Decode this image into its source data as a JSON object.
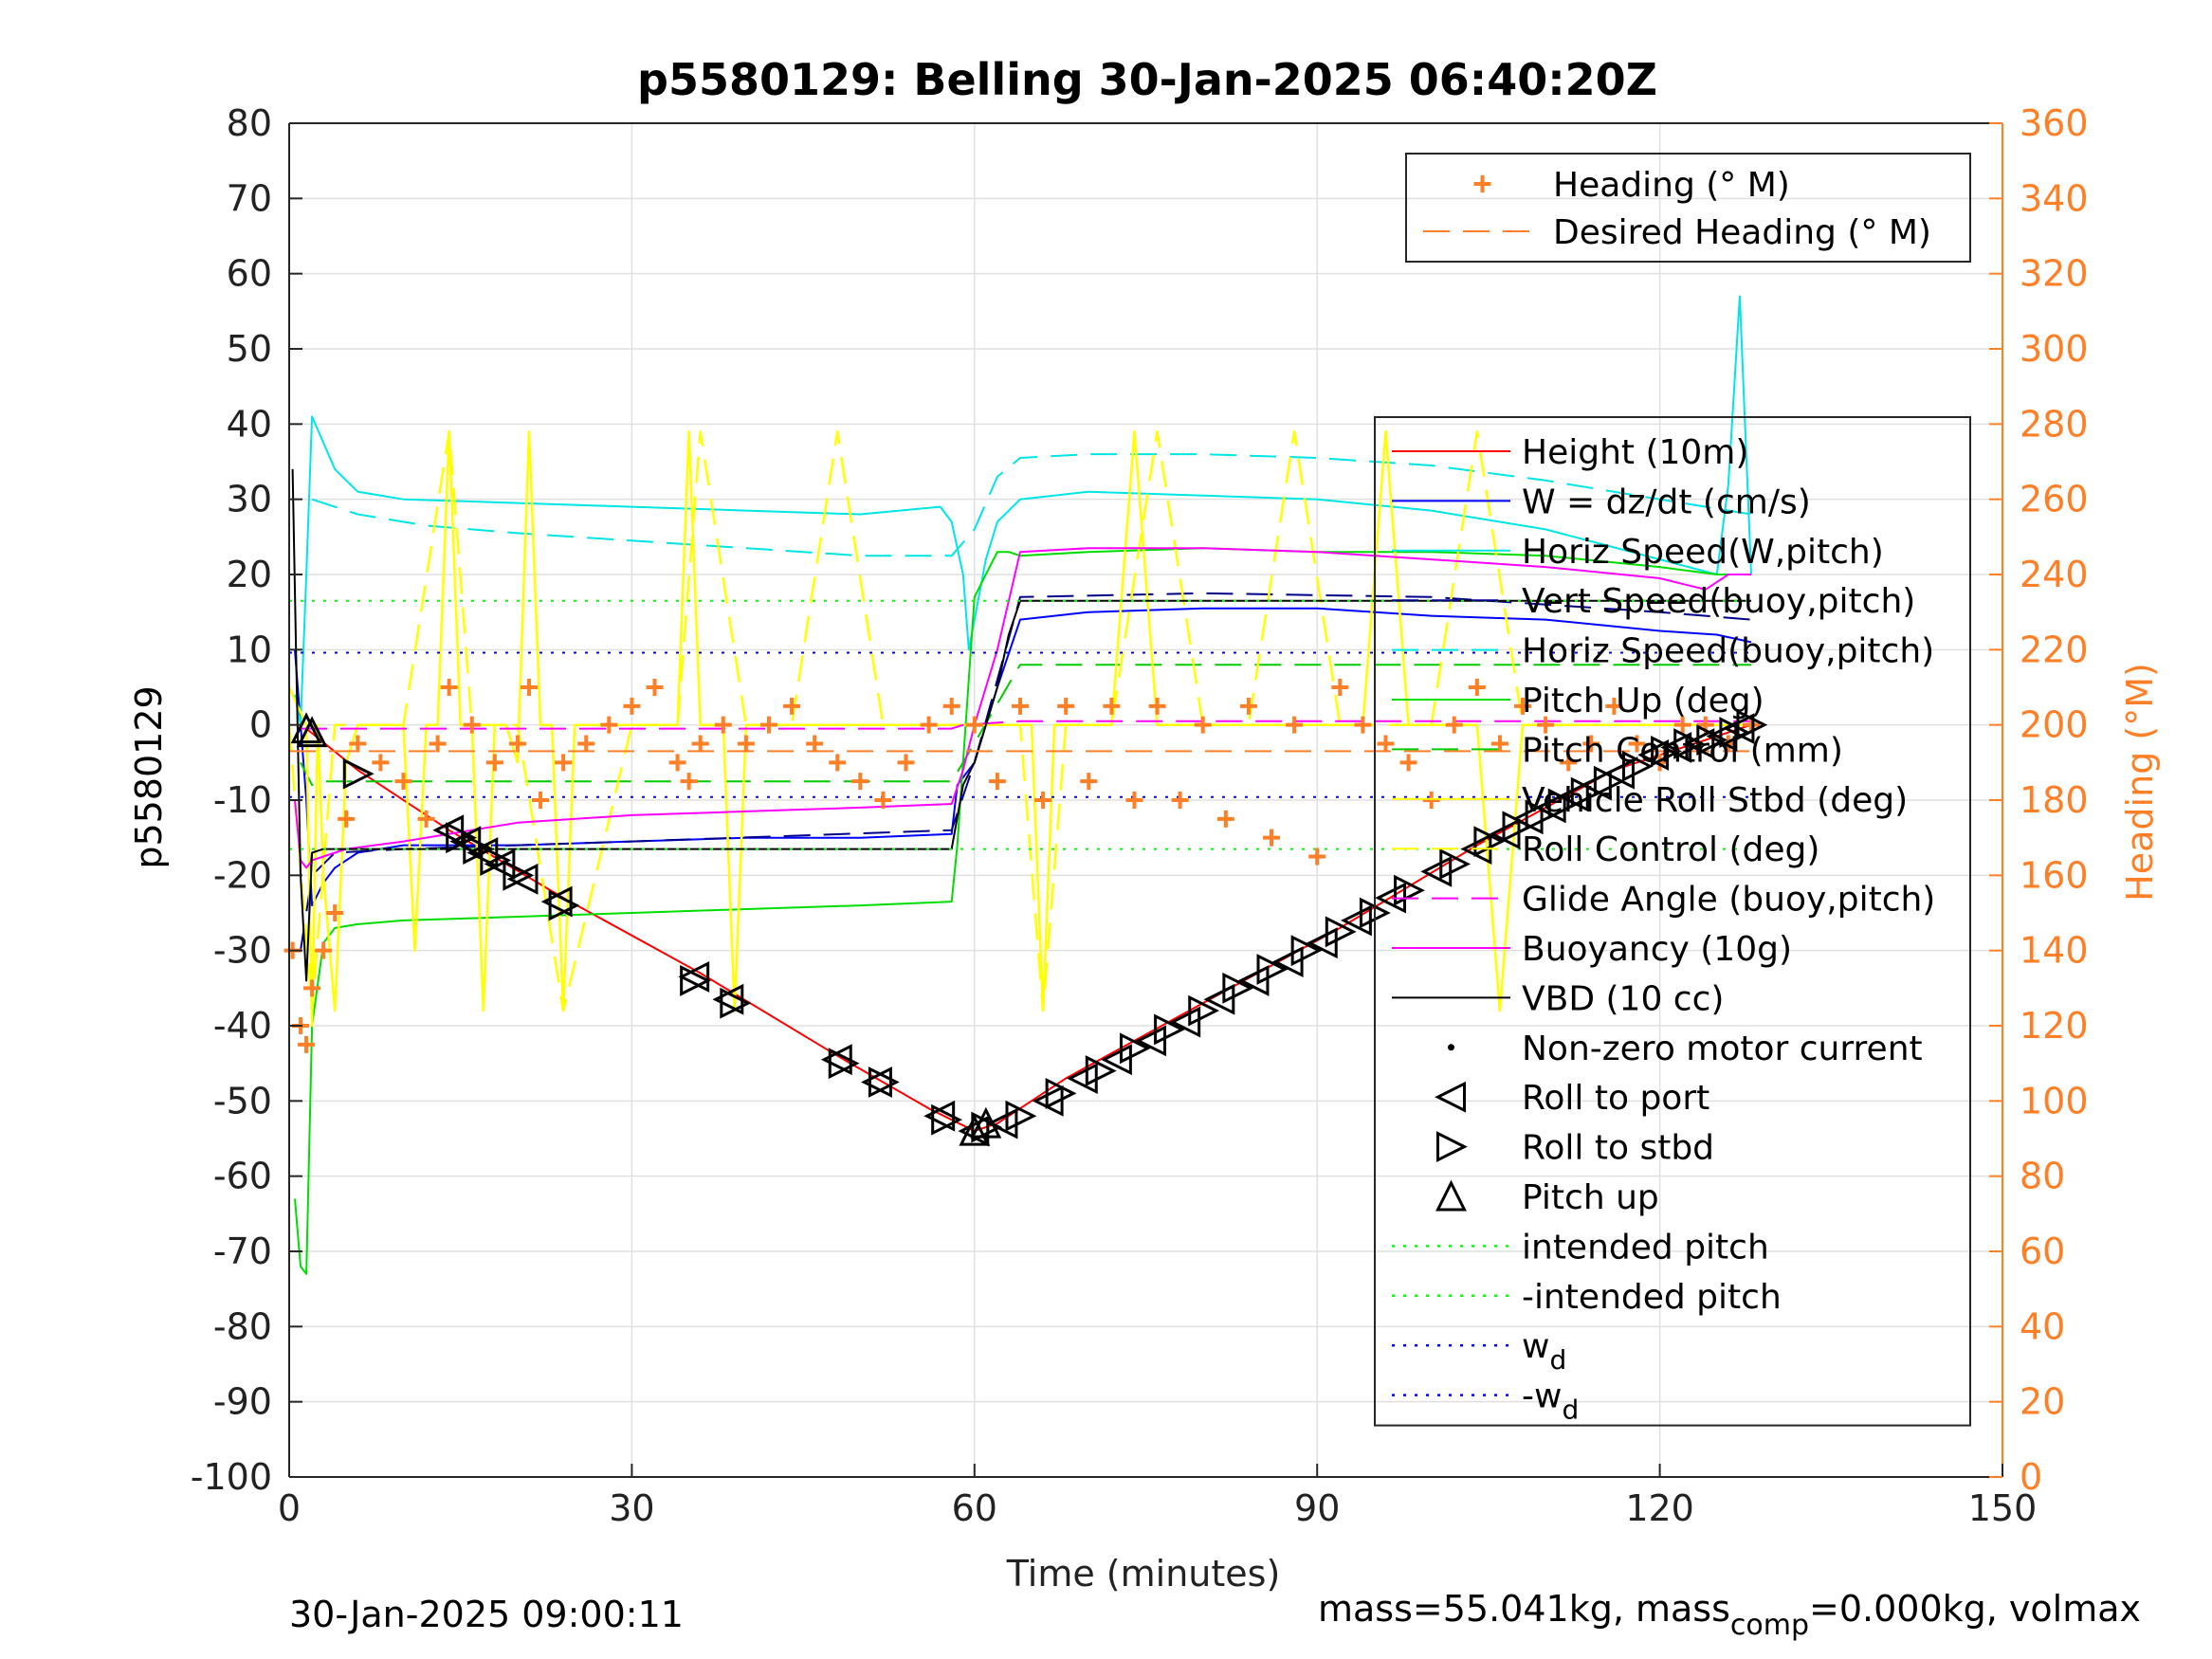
{
  "chart_data": {
    "type": "line",
    "title": "p5580129: Belling 30-Jan-2025 06:40:20Z",
    "xlabel": "Time (minutes)",
    "ylabel": "p5580129",
    "y2label": "Heading (°M)",
    "xlim": [
      0,
      150
    ],
    "ylim": [
      -100,
      80
    ],
    "y2lim": [
      0,
      360
    ],
    "x_ticks": [
      "0",
      "30",
      "60",
      "90",
      "120",
      "150"
    ],
    "y_ticks": [
      "80",
      "70",
      "60",
      "50",
      "40",
      "30",
      "20",
      "10",
      "0",
      "-10",
      "-20",
      "-30",
      "-40",
      "-50",
      "-60",
      "-70",
      "-80",
      "-90",
      "-100"
    ],
    "y2_ticks": [
      "360",
      "340",
      "320",
      "300",
      "280",
      "260",
      "240",
      "220",
      "200",
      "180",
      "160",
      "140",
      "120",
      "100",
      "80",
      "60",
      "40",
      "20",
      "0"
    ],
    "grid": true,
    "footer_left": "30-Jan-2025 09:00:11",
    "footer_right": "mass=55.041kg, mass",
    "footer_right_sub": "comp",
    "footer_right_tail": "=0.000kg, volmax",
    "colors": {
      "heading": "#ff7f27",
      "height": "#ff0000",
      "w": "#0000ff",
      "horiz": "#00e5e5",
      "vert": "#00008b",
      "pitch": "#00dd00",
      "pitch_control": "#00cc00",
      "roll": "#ffff00",
      "buoyancy": "#ff00ff",
      "vbd": "#000000",
      "axis2": "#ff7f27"
    },
    "legend_heading": [
      {
        "label": "Heading (° M)",
        "style": "plus",
        "color": "#ff7f27"
      },
      {
        "label": "Desired Heading (° M)",
        "style": "dash",
        "color": "#ff7f27"
      }
    ],
    "legend_main": [
      {
        "label": "Height (10m)",
        "style": "line",
        "color": "#ff0000"
      },
      {
        "label": "W = dz/dt (cm/s)",
        "style": "line",
        "color": "#0000ff"
      },
      {
        "label": "Horiz Speed(W,pitch)",
        "style": "line",
        "color": "#00e5e5"
      },
      {
        "label": "Vert Speed(buoy,pitch)",
        "style": "dash",
        "color": "#00008b"
      },
      {
        "label": "Horiz Speed(buoy,pitch)",
        "style": "dash",
        "color": "#00e5e5"
      },
      {
        "label": "Pitch Up (deg)",
        "style": "line",
        "color": "#00dd00"
      },
      {
        "label": "Pitch Control (mm)",
        "style": "dash",
        "color": "#00cc00"
      },
      {
        "label": "Vehicle Roll Stbd (deg)",
        "style": "line",
        "color": "#ffff00"
      },
      {
        "label": "Roll Control (deg)",
        "style": "dash",
        "color": "#ffff00"
      },
      {
        "label": "Glide Angle (buoy,pitch)",
        "style": "dash",
        "color": "#ff00ff"
      },
      {
        "label": "Buoyancy (10g)",
        "style": "line",
        "color": "#ff00ff"
      },
      {
        "label": "VBD (10 cc)",
        "style": "line",
        "color": "#000000"
      },
      {
        "label": "Non-zero motor current",
        "style": "dot",
        "color": "#000000"
      },
      {
        "label": "Roll to port",
        "style": "tri-left",
        "color": "#000000"
      },
      {
        "label": "Roll to stbd",
        "style": "tri-right",
        "color": "#000000"
      },
      {
        "label": "Pitch up",
        "style": "tri-up",
        "color": "#000000"
      },
      {
        "label": "intended pitch",
        "style": "dotted",
        "color": "#00ff00"
      },
      {
        "label": "-intended pitch",
        "style": "dotted",
        "color": "#00ff00"
      },
      {
        "label": "w",
        "sub": "d",
        "style": "dotted",
        "color": "#0000ff"
      },
      {
        "label": "-w",
        "sub": "d",
        "style": "dotted",
        "color": "#0000ff"
      }
    ],
    "series": [
      {
        "name": "Height (10m)",
        "color": "#ff0000",
        "x": [
          1.5,
          6,
          14,
          24,
          36,
          48,
          56,
          60,
          62,
          68,
          80,
          92,
          104,
          116,
          128
        ],
        "y": [
          -0.5,
          -6,
          -14,
          -23,
          -33,
          -44,
          -51,
          -54,
          -53,
          -47,
          -37,
          -27,
          -16,
          -6,
          0
        ]
      },
      {
        "name": "W = dz/dt (cm/s)",
        "color": "#0000ff",
        "x": [
          0.5,
          1.5,
          2,
          3,
          4,
          6,
          10,
          20,
          30,
          40,
          50,
          58,
          58.5,
          60,
          62,
          64,
          70,
          80,
          90,
          100,
          110,
          120,
          125,
          128
        ],
        "y": [
          10,
          -10,
          -24,
          -21,
          -19,
          -17,
          -16,
          -16,
          -15.5,
          -15,
          -15,
          -14.5,
          -8,
          -5,
          5,
          14,
          15,
          15.5,
          15.5,
          14.5,
          14,
          12.5,
          12,
          11
        ]
      },
      {
        "name": "Horiz Speed(W,pitch)",
        "color": "#00e5e5",
        "x": [
          0.5,
          1,
          1.5,
          2,
          4,
          6,
          10,
          20,
          30,
          40,
          50,
          57,
          58,
          59,
          59.5,
          60.5,
          61,
          62,
          64,
          70,
          80,
          90,
          100,
          110,
          120,
          125,
          126,
          127,
          128
        ],
        "y": [
          4,
          0,
          20,
          41,
          34,
          31,
          30,
          29.5,
          29,
          28.5,
          28,
          29,
          27,
          20,
          10,
          18,
          22,
          27,
          30,
          31,
          30.5,
          30,
          28.5,
          26,
          22,
          20,
          32,
          57,
          20
        ]
      },
      {
        "name": "Vert Speed(buoy,pitch)",
        "color": "#00008b",
        "x": [
          1,
          2,
          4,
          10,
          30,
          58,
          60,
          64,
          80,
          100,
          120,
          128
        ],
        "y": [
          -30,
          -20,
          -17,
          -16.5,
          -15.5,
          -14,
          -5,
          17,
          17.5,
          17,
          15,
          14
        ]
      },
      {
        "name": "Horiz Speed(buoy,pitch)",
        "color": "#00e5e5",
        "x": [
          2,
          6,
          12,
          20,
          30,
          40,
          50,
          58,
          60,
          62,
          64,
          70,
          80,
          90,
          100,
          110,
          120,
          128
        ],
        "y": [
          30,
          28,
          26.5,
          25.5,
          24.5,
          23.5,
          22.5,
          22.5,
          26,
          33,
          35.5,
          36,
          36,
          35.5,
          34.5,
          32.5,
          30,
          28
        ]
      },
      {
        "name": "Pitch Up (deg)",
        "color": "#00dd00",
        "x": [
          0.5,
          1,
          1.5,
          2,
          3,
          4,
          6,
          10,
          20,
          30,
          40,
          50,
          58,
          58.5,
          60,
          61,
          62,
          63,
          64,
          70,
          80,
          90,
          100,
          110,
          120,
          125,
          128
        ],
        "y": [
          -63,
          -72,
          -73,
          -40,
          -29,
          -27,
          -26.5,
          -26,
          -25.5,
          -25,
          -24.5,
          -24,
          -23.5,
          -16,
          17,
          20,
          23,
          23,
          22.5,
          23,
          23.5,
          23,
          23,
          22.5,
          21,
          20,
          20
        ]
      },
      {
        "name": "Pitch Control (mm)",
        "color": "#00cc00",
        "x": [
          1,
          2,
          3,
          58,
          59,
          64,
          128
        ],
        "y": [
          -5,
          -8,
          -7.5,
          -7.5,
          -5,
          8,
          8
        ]
      },
      {
        "name": "Vehicle Roll Stbd (deg)",
        "color": "#ffff00",
        "x": [
          0,
          1.5,
          2,
          2.5,
          3,
          4,
          5,
          6,
          8,
          10,
          11,
          12,
          13,
          14,
          15,
          16,
          17,
          18,
          19,
          20,
          21,
          22,
          23,
          24,
          25,
          26,
          28,
          30,
          32,
          34,
          35,
          36,
          37,
          38,
          39,
          40,
          42,
          44,
          46,
          48,
          50,
          52,
          54,
          56,
          58,
          60,
          62,
          64,
          65,
          66,
          67,
          68,
          70,
          72,
          74,
          76,
          78,
          80,
          82,
          84,
          86,
          88,
          90,
          92,
          94,
          96,
          98,
          100,
          102,
          104,
          106,
          108,
          110,
          112,
          114,
          116,
          118,
          120,
          122,
          124,
          126,
          128
        ],
        "y": [
          5,
          0,
          -40,
          0,
          -20,
          -38,
          -5,
          0,
          0,
          0,
          -30,
          0,
          0,
          39,
          0,
          0,
          -38,
          0,
          0,
          -5,
          39,
          0,
          0,
          -38,
          0,
          0,
          0,
          0,
          0,
          0,
          39,
          0,
          0,
          0,
          -38,
          0,
          0,
          0,
          0,
          0,
          0,
          0,
          0,
          0,
          0,
          0,
          0,
          0,
          0,
          -38,
          0,
          0,
          0,
          0,
          39,
          0,
          0,
          0,
          0,
          0,
          0,
          0,
          0,
          0,
          0,
          39,
          0,
          0,
          0,
          0,
          -38,
          0,
          0,
          0,
          0,
          0,
          0,
          0,
          0,
          0,
          0,
          0
        ]
      },
      {
        "name": "Roll Control (deg)",
        "color": "#ffff00",
        "x": [
          0,
          2,
          4,
          6,
          10,
          14,
          16,
          20,
          24,
          30,
          34,
          36,
          40,
          44,
          48,
          52,
          56,
          60,
          64,
          66,
          68,
          72,
          76,
          80,
          84,
          88,
          92,
          96,
          100,
          104,
          108,
          112,
          116,
          120,
          124,
          128
        ],
        "y": [
          0,
          -38,
          0,
          0,
          0,
          39,
          0,
          0,
          -38,
          0,
          0,
          39,
          0,
          0,
          39,
          0,
          0,
          0,
          0,
          -38,
          0,
          0,
          39,
          0,
          0,
          39,
          0,
          0,
          0,
          39,
          0,
          0,
          0,
          0,
          0,
          0
        ]
      },
      {
        "name": "Glide Angle (buoy,pitch)",
        "color": "#ff00ff",
        "x": [
          1,
          3,
          58,
          59,
          64,
          128
        ],
        "y": [
          -0.5,
          -0.5,
          -0.5,
          0,
          0.5,
          0.5
        ]
      },
      {
        "name": "Buoyancy (10g)",
        "color": "#ff00ff",
        "x": [
          0.5,
          1,
          1.5,
          2,
          3,
          5,
          10,
          20,
          30,
          40,
          50,
          58,
          59,
          60,
          62,
          64,
          70,
          80,
          90,
          100,
          110,
          120,
          124,
          126,
          128
        ],
        "y": [
          -10,
          -18,
          -19,
          -18,
          -17.5,
          -16.5,
          -15.5,
          -13,
          -12,
          -11.5,
          -11,
          -10.5,
          -6,
          0,
          10,
          23,
          23.5,
          23.5,
          23,
          22,
          21,
          19.5,
          18,
          20,
          20
        ]
      },
      {
        "name": "VBD (10 cc)",
        "color": "#000000",
        "x": [
          0.3,
          0.6,
          1,
          1.5,
          2,
          3,
          58,
          59,
          60,
          62,
          63,
          64,
          128
        ],
        "y": [
          34,
          10,
          -20,
          -34,
          -17,
          -16.5,
          -16.5,
          -8,
          -5,
          5,
          12,
          16.5,
          16.5
        ]
      },
      {
        "name": "intended pitch",
        "color": "#00ff00",
        "style": "dotted",
        "x": [
          0,
          128
        ],
        "y": [
          16.5,
          16.5
        ]
      },
      {
        "name": "-intended pitch",
        "color": "#00ff00",
        "style": "dotted",
        "x": [
          0,
          128
        ],
        "y": [
          -16.5,
          -16.5
        ]
      },
      {
        "name": "w_d",
        "color": "#0000ff",
        "style": "dotted",
        "x": [
          0,
          128
        ],
        "y": [
          9.6,
          9.6
        ]
      },
      {
        "name": "-w_d",
        "color": "#0000ff",
        "style": "dotted",
        "x": [
          0,
          128
        ],
        "y": [
          -9.6,
          -9.6
        ]
      }
    ],
    "heading_series": {
      "name": "Heading (° M)",
      "color": "#ff7f27",
      "x": [
        0.3,
        1,
        1.5,
        2,
        3,
        4,
        5,
        6,
        8,
        10,
        12,
        13,
        14,
        16,
        18,
        20,
        21,
        22,
        24,
        26,
        28,
        30,
        32,
        34,
        35,
        36,
        38,
        40,
        42,
        44,
        46,
        48,
        50,
        52,
        54,
        56,
        58,
        60,
        62,
        64,
        66,
        68,
        70,
        72,
        74,
        76,
        78,
        80,
        82,
        84,
        86,
        88,
        90,
        92,
        94,
        96,
        98,
        100,
        102,
        104,
        106,
        108,
        110,
        112,
        114,
        116,
        118,
        120,
        122,
        124,
        126,
        128
      ],
      "y": [
        140,
        120,
        115,
        130,
        140,
        150,
        175,
        195,
        190,
        185,
        175,
        195,
        210,
        200,
        190,
        195,
        210,
        180,
        190,
        195,
        200,
        205,
        210,
        190,
        185,
        195,
        200,
        195,
        200,
        205,
        195,
        190,
        185,
        180,
        190,
        200,
        205,
        200,
        185,
        205,
        180,
        205,
        185,
        205,
        180,
        205,
        180,
        200,
        175,
        205,
        170,
        200,
        165,
        210,
        200,
        195,
        190,
        180,
        200,
        210,
        195,
        205,
        200,
        190,
        195,
        205,
        195,
        190,
        200,
        200,
        195,
        200
      ]
    },
    "desired_heading": {
      "name": "Desired Heading (° M)",
      "color": "#ff7f27",
      "x": [
        0,
        128
      ],
      "y": [
        193,
        193
      ]
    },
    "markers": {
      "roll_to_port": {
        "x": [
          14,
          15.5,
          17,
          18.5,
          20.5,
          23.5,
          35.5,
          38.5,
          48,
          51.5,
          57,
          60,
          62.5,
          66.5,
          69.5,
          72.5,
          75.5,
          78.5,
          81.5,
          84.5,
          87.5,
          90.5,
          93.5,
          96.5,
          100.5,
          104,
          106.5,
          108.5,
          110.5,
          112.5,
          114.5,
          116.5,
          119.5,
          121.5,
          123.5,
          125.5,
          127
        ],
        "y": [
          -14,
          -15.5,
          -17,
          -18.5,
          -20.5,
          -23.5,
          -33.5,
          -36.5,
          -44.5,
          -47.5,
          -52,
          -54,
          -53,
          -50,
          -47,
          -44.5,
          -42,
          -39.5,
          -36.5,
          -34,
          -31.5,
          -29,
          -26,
          -23,
          -19.5,
          -16.5,
          -14.5,
          -12.5,
          -11,
          -9.5,
          -8,
          -6.5,
          -4,
          -3,
          -2.5,
          -1.5,
          -0.5
        ]
      },
      "roll_to_stbd": {
        "x": [
          6,
          15,
          16.5,
          18,
          20,
          24,
          35.5,
          39,
          48.5,
          52,
          57.5,
          61,
          64,
          67.5,
          71,
          74,
          77,
          80,
          83,
          86,
          89,
          92,
          95,
          98,
          102,
          105,
          107.5,
          109.5,
          111.5,
          113.5,
          115.5,
          118,
          120.5,
          122.5,
          124.5,
          126.5,
          128
        ],
        "y": [
          -6.5,
          -15,
          -16.5,
          -18,
          -20,
          -24,
          -34,
          -37,
          -45,
          -47.5,
          -52.5,
          -53.5,
          -52,
          -49,
          -46,
          -43,
          -40.5,
          -38,
          -35,
          -32.5,
          -30,
          -27.5,
          -25,
          -22,
          -18.5,
          -15.5,
          -13.5,
          -12,
          -10.5,
          -9,
          -7.5,
          -5.5,
          -3.5,
          -2.5,
          -2,
          -1,
          0
        ]
      },
      "pitch_up": {
        "x": [
          1.5,
          2,
          60,
          61
        ],
        "y": [
          -0.5,
          -1,
          -54,
          -53
        ]
      }
    }
  }
}
